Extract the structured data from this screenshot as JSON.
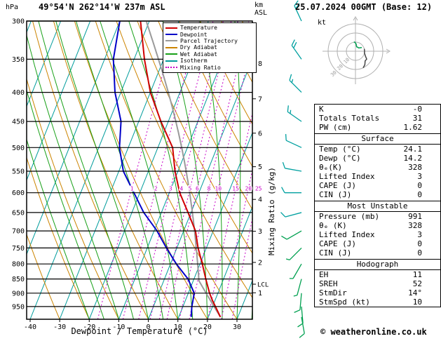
{
  "header": {
    "pressure_unit": "hPa",
    "station": "49°54'N 262°14'W 237m ASL",
    "km_label": "km",
    "asl_label": "ASL",
    "datetime": "25.07.2024 00GMT (Base: 12)"
  },
  "legend": [
    {
      "label": "Temperature",
      "color": "#d00000",
      "style": "solid",
      "name": "temperature-line-swatch"
    },
    {
      "label": "Dewpoint",
      "color": "#0000c8",
      "style": "solid",
      "name": "dewpoint-line-swatch"
    },
    {
      "label": "Parcel Trajectory",
      "color": "#9a9a9a",
      "style": "solid",
      "name": "parcel-trajectory-swatch"
    },
    {
      "label": "Dry Adiabat",
      "color": "#cc8400",
      "style": "solid",
      "name": "dry-adiabat-swatch"
    },
    {
      "label": "Wet Adiabat",
      "color": "#18a018",
      "style": "solid",
      "name": "wet-adiabat-swatch"
    },
    {
      "label": "Isotherm",
      "color": "#009c9c",
      "style": "solid",
      "name": "isotherm-swatch"
    },
    {
      "label": "Mixing Ratio",
      "color": "#c800c8",
      "style": "dotted",
      "name": "mixing-ratio-swatch"
    }
  ],
  "axes": {
    "lcl_label": "LCL"
  },
  "colors": {
    "temperature": "#d00000",
    "dewpoint": "#0000c8",
    "parcel": "#9a9a9a",
    "dry_adiabat": "#cc8400",
    "wet_adiabat": "#18a018",
    "isotherm": "#009c9c",
    "mixing_ratio": "#c800c8",
    "wind_low": "#00a050",
    "wind_high": "#00a0a0",
    "hodo_ring": "#b0b0b0",
    "hodo_trace": "#444444",
    "grid": "#000000"
  },
  "chart_data": {
    "type": "line",
    "title": "Skew-T log-P thermodynamic diagram",
    "x_axis": {
      "label": "Dewpoint / Temperature (°C)",
      "ticks": [
        -40,
        -30,
        -20,
        -10,
        0,
        10,
        20,
        30
      ],
      "range": [
        -41,
        38
      ]
    },
    "y_axis": {
      "label": "hPa",
      "scale": "log",
      "ticks": [
        300,
        350,
        400,
        450,
        500,
        550,
        600,
        650,
        700,
        750,
        800,
        850,
        900,
        950
      ],
      "range": [
        300,
        1000
      ]
    },
    "km_ticks": [
      1,
      2,
      3,
      4,
      5,
      6,
      7,
      8
    ],
    "mixing_ratio_axis_label": "Mixing Ratio (g/kg)",
    "mixing_ratio_lines": [
      1,
      2,
      3,
      4,
      5,
      6,
      8,
      10,
      15,
      20,
      25
    ],
    "isotherm_step_c": 10,
    "dry_adiabat_step_c": 10,
    "wet_adiabat_step_c": 5,
    "lcl_pressure": 868,
    "sounding": {
      "pressure": [
        991,
        950,
        925,
        900,
        850,
        800,
        750,
        700,
        650,
        600,
        550,
        500,
        450,
        400,
        350,
        300
      ],
      "temperature": [
        24.1,
        21.0,
        19.0,
        17.2,
        14.0,
        10.8,
        7.2,
        4.0,
        -1.0,
        -6.5,
        -11.0,
        -15.0,
        -22.5,
        -30.0,
        -36.5,
        -43.0
      ],
      "dewpoint": [
        14.2,
        13.0,
        12.5,
        12.0,
        8.0,
        2.0,
        -3.5,
        -9.0,
        -16.0,
        -22.0,
        -28.5,
        -33.0,
        -36.0,
        -42.0,
        -47.0,
        -50.0
      ]
    },
    "winds": [
      {
        "p": 991,
        "dir": 170,
        "spd": 10
      },
      {
        "p": 950,
        "dir": 175,
        "spd": 10
      },
      {
        "p": 900,
        "dir": 185,
        "spd": 8
      },
      {
        "p": 850,
        "dir": 195,
        "spd": 5
      },
      {
        "p": 800,
        "dir": 210,
        "spd": 5
      },
      {
        "p": 750,
        "dir": 225,
        "spd": 5
      },
      {
        "p": 700,
        "dir": 240,
        "spd": 8
      },
      {
        "p": 650,
        "dir": 255,
        "spd": 10
      },
      {
        "p": 600,
        "dir": 270,
        "spd": 10
      },
      {
        "p": 550,
        "dir": 280,
        "spd": 10
      },
      {
        "p": 500,
        "dir": 295,
        "spd": 12
      },
      {
        "p": 450,
        "dir": 305,
        "spd": 15
      },
      {
        "p": 400,
        "dir": 315,
        "spd": 15
      },
      {
        "p": 350,
        "dir": 325,
        "spd": 18
      },
      {
        "p": 300,
        "dir": 335,
        "spd": 20
      }
    ]
  },
  "hodograph": {
    "unit": "kt",
    "rings": [
      10,
      20,
      30
    ]
  },
  "panel": {
    "sections": [
      {
        "rows": [
          [
            "K",
            "-0"
          ],
          [
            "Totals Totals",
            "31"
          ],
          [
            "PW (cm)",
            "1.62"
          ]
        ]
      },
      {
        "title": "Surface",
        "rows": [
          [
            "Temp (°C)",
            "24.1"
          ],
          [
            "Dewp (°C)",
            "14.2"
          ],
          [
            "θₑ(K)",
            "328"
          ],
          [
            "Lifted Index",
            "3"
          ],
          [
            "CAPE (J)",
            "0"
          ],
          [
            "CIN (J)",
            "0"
          ]
        ]
      },
      {
        "title": "Most Unstable",
        "rows": [
          [
            "Pressure (mb)",
            "991"
          ],
          [
            "θₑ (K)",
            "328"
          ],
          [
            "Lifted Index",
            "3"
          ],
          [
            "CAPE (J)",
            "0"
          ],
          [
            "CIN (J)",
            "0"
          ]
        ]
      },
      {
        "title": "Hodograph",
        "rows": [
          [
            "EH",
            "11"
          ],
          [
            "SREH",
            "52"
          ],
          [
            "StmDir",
            "14°"
          ],
          [
            "StmSpd (kt)",
            "10"
          ]
        ]
      }
    ]
  },
  "footer": {
    "copyright": "© weatheronline.co.uk"
  }
}
